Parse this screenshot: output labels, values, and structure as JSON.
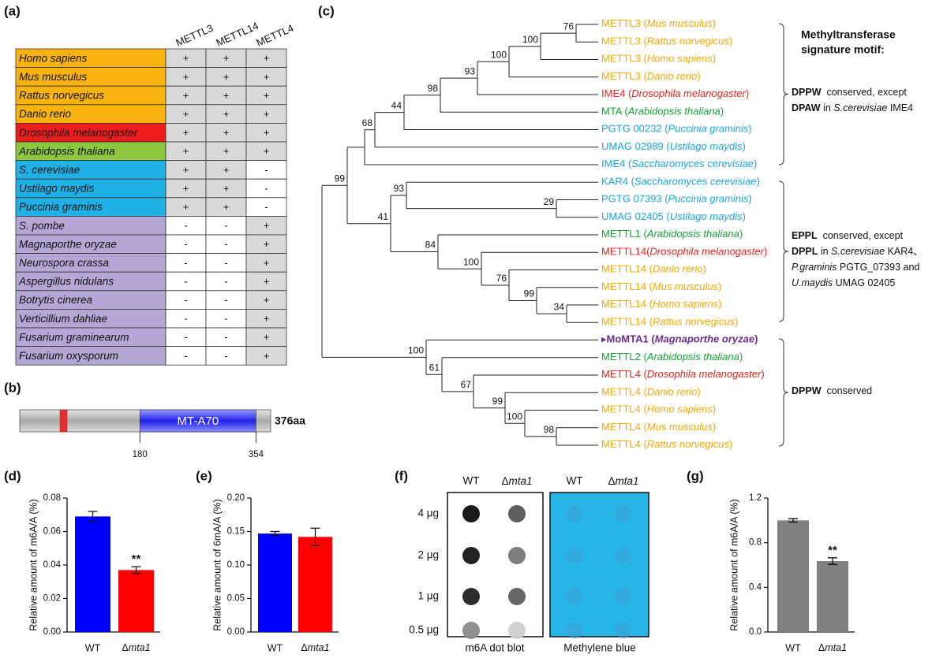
{
  "panel_labels": [
    "(a)",
    "(b)",
    "(c)",
    "(d)",
    "(e)",
    "(f)",
    "(g)"
  ],
  "table": {
    "columns": [
      "METTL3",
      "METTL14",
      "METTL4"
    ],
    "rows": [
      {
        "species": "Homo sapiens",
        "color": "#f9b30e",
        "cells": [
          "+",
          "+",
          "+"
        ]
      },
      {
        "species": "Mus musculus",
        "color": "#f9b30e",
        "cells": [
          "+",
          "+",
          "+"
        ]
      },
      {
        "species": "Rattus norvegicus",
        "color": "#f9b30e",
        "cells": [
          "+",
          "+",
          "+"
        ]
      },
      {
        "species": "Danio rerio",
        "color": "#f9b30e",
        "cells": [
          "+",
          "+",
          "+"
        ]
      },
      {
        "species": "Drosophila melanogaster",
        "color": "#ee1c1c",
        "cells": [
          "+",
          "+",
          "+"
        ]
      },
      {
        "species": "Arabidopsis thaliana",
        "color": "#8dc63f",
        "cells": [
          "+",
          "+",
          "+"
        ]
      },
      {
        "species": "S. cerevisiae",
        "color": "#1fb1e6",
        "cells": [
          "+",
          "+",
          "-"
        ]
      },
      {
        "species": "Ustilago maydis",
        "color": "#1fb1e6",
        "cells": [
          "+",
          "+",
          "-"
        ]
      },
      {
        "species": "Puccinia graminis",
        "color": "#1fb1e6",
        "cells": [
          "+",
          "+",
          "-"
        ]
      },
      {
        "species": "S. pombe",
        "color": "#b4a7d6",
        "cells": [
          "-",
          "-",
          "+"
        ]
      },
      {
        "species": "Magnaporthe oryzae",
        "color": "#b4a7d6",
        "cells": [
          "-",
          "-",
          "+"
        ]
      },
      {
        "species": "Neurospora crassa",
        "color": "#b4a7d6",
        "cells": [
          "-",
          "-",
          "+"
        ]
      },
      {
        "species": "Aspergillus nidulans",
        "color": "#b4a7d6",
        "cells": [
          "-",
          "-",
          "+"
        ]
      },
      {
        "species": "Botrytis cinerea",
        "color": "#b4a7d6",
        "cells": [
          "-",
          "-",
          "+"
        ]
      },
      {
        "species": "Verticillium dahliae",
        "color": "#b4a7d6",
        "cells": [
          "-",
          "-",
          "+"
        ]
      },
      {
        "species": "Fusarium graminearum",
        "color": "#b4a7d6",
        "cells": [
          "-",
          "-",
          "+"
        ]
      },
      {
        "species": "Fusarium oxysporum",
        "color": "#b4a7d6",
        "cells": [
          "-",
          "-",
          "+"
        ]
      }
    ]
  },
  "domain": {
    "name": "MT-A70",
    "length": {
      "value": 376,
      "label": "376aa"
    },
    "start": 180,
    "end": 354
  },
  "tree": {
    "leaves": [
      {
        "label": "METTL3 (Mus musculus)",
        "color": "#f5a800"
      },
      {
        "label": "METTL3 (Rattus norvegicus)",
        "color": "#f5a800"
      },
      {
        "label": "METTL3 (Homo sapiens)",
        "color": "#f5a800"
      },
      {
        "label": "METTL3 (Danio rerio)",
        "color": "#f5a800"
      },
      {
        "label": "IME4 (Drosophila melanogaster)",
        "color": "#e8221b"
      },
      {
        "label": "MTA (Arabidopsis thaliana)",
        "color": "#16a337"
      },
      {
        "label": "PGTG 00232 (Puccinia graminis)",
        "color": "#1aa5e0"
      },
      {
        "label": "UMAG 02989 (Ustilago maydis)",
        "color": "#1aa5e0"
      },
      {
        "label": "IME4 (Saccharomyces cerevisiae)",
        "color": "#1aa5e0"
      },
      {
        "label": "KAR4 (Saccharomyces cerevisiae)",
        "color": "#1aa5e0"
      },
      {
        "label": "PGTG 07393 (Puccinia graminis)",
        "color": "#1aa5e0"
      },
      {
        "label": "UMAG 02405 (Ustilago maydis)",
        "color": "#1aa5e0"
      },
      {
        "label": "METTL1 (Arabidopsis thaliana)",
        "color": "#16a337"
      },
      {
        "label": "METTL14(Drosophila melanogaster)",
        "color": "#e8221b"
      },
      {
        "label": "METTL14 (Danio rerio)",
        "color": "#f5a800"
      },
      {
        "label": "METTL14 (Mus musculus)",
        "color": "#f5a800"
      },
      {
        "label": "METTL14 (Homo sapiens)",
        "color": "#f5a800"
      },
      {
        "label": "METTL14 (Rattus norvegicus)",
        "color": "#f5a800"
      },
      {
        "label": "▸MoMTA1 (Magnaporthe oryzae)",
        "color": "#6a2c91",
        "highlight": true
      },
      {
        "label": "METTL2 (Arabidopsis thaliana)",
        "color": "#16a337"
      },
      {
        "label": "METTL4 (Drosophila melanogaster)",
        "color": "#e8221b"
      },
      {
        "label": "METTL4 (Danio rerio)",
        "color": "#f5a800"
      },
      {
        "label": "METTL4 (Homo sapiens)",
        "color": "#f5a800"
      },
      {
        "label": "METTL4 (Mus musculus)",
        "color": "#f5a800"
      },
      {
        "label": "METTL4 (Rattus norvegicus)",
        "color": "#f5a800"
      }
    ],
    "supports": [
      76,
      100,
      100,
      93,
      98,
      44,
      68,
      99,
      29,
      93,
      41,
      84,
      100,
      76,
      99,
      34,
      100,
      61,
      67,
      99,
      100,
      98
    ],
    "motif_title": [
      "Methyltransferase",
      "signature motif:"
    ],
    "brackets": [
      {
        "lines": [
          [
            {
              "text": "DPPW",
              "style": "bold"
            },
            {
              "text": "  conserved, except"
            }
          ],
          [
            {
              "text": "DPAW",
              "style": "bold"
            },
            {
              "text": " in "
            },
            {
              "text": "S.cerevisiae",
              "style": "italic"
            },
            {
              "text": " IME4"
            }
          ]
        ]
      },
      {
        "lines": [
          [
            {
              "text": "EPPL",
              "style": "bold"
            },
            {
              "text": "  conserved, except"
            }
          ],
          [
            {
              "text": "DPPL",
              "style": "bold"
            },
            {
              "text": " in "
            },
            {
              "text": "S.cerevisiae",
              "style": "italic"
            },
            {
              "text": " KAR4、"
            }
          ],
          [
            {
              "text": "P.graminis",
              "style": "italic"
            },
            {
              "text": " PGTG_07393 and"
            }
          ],
          [
            {
              "text": "U.maydis",
              "style": "italic"
            },
            {
              "text": " UMAG 02405"
            }
          ]
        ]
      },
      {
        "lines": [
          [
            {
              "text": "DPPW",
              "style": "bold"
            },
            {
              "text": "  conserved"
            }
          ]
        ]
      }
    ]
  },
  "dot_blot": {
    "columns": [
      "WT",
      "Δmta1"
    ],
    "amounts": [
      "4 μg",
      "2 μg",
      "1 μg",
      "0.5 μg"
    ],
    "blots": [
      "m6A dot blot",
      "Methylene blue"
    ]
  },
  "chart_data": [
    {
      "type": "bar",
      "ylabel": "Relative amount of m6A/A (%)",
      "categories": [
        "WT",
        "Δmta1"
      ],
      "values": [
        0.069,
        0.037
      ],
      "errors": [
        0.003,
        0.002
      ],
      "colors": [
        "#0000ff",
        "#ff0000"
      ],
      "ylim": [
        0,
        0.08
      ],
      "yticks": [
        {
          "value": 0,
          "label": "0.00"
        },
        0.02,
        0.04,
        0.06,
        0.08
      ],
      "annotation": "**"
    },
    {
      "type": "bar",
      "ylabel": "Relative amount of 6mA/A (%)",
      "categories": [
        "WT",
        "Δmta1"
      ],
      "values": [
        0.147,
        0.142
      ],
      "errors": [
        0.003,
        0.013
      ],
      "colors": [
        "#0000ff",
        "#ff0000"
      ],
      "ylim": [
        0,
        0.2
      ],
      "yticks": [
        {
          "value": 0,
          "label": "0.00"
        },
        0.05,
        {
          "value": 0.1,
          "label": "0.10"
        },
        0.15,
        {
          "value": 0.2,
          "label": "0.20"
        }
      ]
    },
    {
      "type": "bar",
      "ylabel": "Relative amount of m6A/A (%)",
      "categories": [
        "WT",
        "Δmta1"
      ],
      "values": [
        1.0,
        0.635
      ],
      "errors": [
        0.015,
        0.03
      ],
      "colors": [
        "#808080",
        "#808080"
      ],
      "ylim": [
        0,
        1.2
      ],
      "yticks": [
        {
          "value": 0,
          "label": "0.0"
        },
        0.4,
        0.8,
        1.2
      ],
      "annotation": "**"
    }
  ]
}
